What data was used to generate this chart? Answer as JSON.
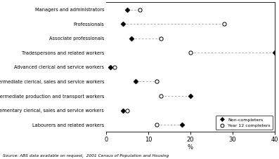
{
  "categories": [
    "Managers and administrators",
    "Professionals",
    "Associate professionals",
    "Tradespersons and related workers",
    "Advanced clerical and service workers",
    "Intermediate clerical, sales and service workers",
    "Intermediate production and transport workers",
    "Elementary clerical, sales and service workers",
    "Labourers and related workers"
  ],
  "non_completers": [
    5,
    4,
    6,
    40,
    1,
    7,
    20,
    4,
    18
  ],
  "yr12_completers": [
    8,
    28,
    13,
    20,
    2,
    12,
    13,
    5,
    12
  ],
  "xlim": [
    0,
    40
  ],
  "xticks": [
    0,
    10,
    20,
    30,
    40
  ],
  "xlabel": "%",
  "source": "Source: ABS data available on request,  2001 Census of Population and Housing",
  "legend_filled": "Non-completers",
  "legend_open": "Year 12 completers",
  "bg_color": "#ffffff",
  "line_color": "#aaaaaa"
}
